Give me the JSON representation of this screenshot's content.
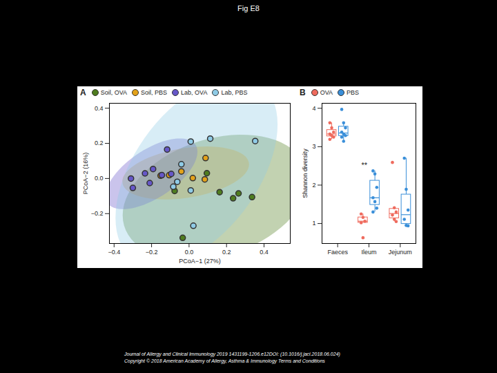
{
  "page": {
    "title": "Fig E8",
    "footer": [
      "Journal of Allergy and Clinical Immunology 2019 1431199-1206.e12DOI: (10.1016/j.jaci.2018.06.024)",
      "Copyright © 2018 American Academy of Allergy, Asthma & Immunology Terms and Conditions"
    ]
  },
  "chart_data": [
    {
      "type": "scatter",
      "panel": "A",
      "x_label": "PCoA−1 (27%)",
      "y_label": "PCoA−2 (16%)",
      "xlim": [
        -0.425,
        0.54
      ],
      "ylim": [
        -0.37,
        0.428
      ],
      "xticks": [
        {
          "value": -0.4,
          "label": "−0.4"
        },
        {
          "value": -0.2,
          "label": "−0.2"
        },
        {
          "value": 0,
          "label": "0.0"
        },
        {
          "value": 0.2,
          "label": "0.2"
        },
        {
          "value": 0.4,
          "label": "0.4"
        }
      ],
      "yticks": [
        {
          "value": -0.2,
          "label": "−0.2"
        },
        {
          "value": 0,
          "label": "0.0"
        },
        {
          "value": 0.2,
          "label": "0.2"
        },
        {
          "value": 0.4,
          "label": "0.4"
        }
      ],
      "grid": false,
      "legend": "top",
      "series": [
        {
          "name": "Soil, OVA",
          "color": "#4f7d1f",
          "x": [
            0.095,
            0.163,
            0.264,
            0.235,
            0.336,
            -0.034,
            -0.077
          ],
          "y": [
            0.03,
            -0.078,
            -0.085,
            -0.113,
            -0.106,
            -0.338,
            -0.071
          ]
        },
        {
          "name": "Soil, PBS",
          "color": "#e3a21a",
          "x": [
            0.088,
            0.02,
            0.084,
            -0.106,
            -0.041,
            -0.152
          ],
          "y": [
            0.116,
            0.002,
            -0.005,
            0.019,
            0.04,
            0.016
          ]
        },
        {
          "name": "Lab, OVA",
          "color": "#6657c8",
          "x": [
            -0.117,
            -0.192,
            -0.235,
            -0.21,
            -0.145,
            -0.095,
            -0.3,
            -0.31
          ],
          "y": [
            0.165,
            0.054,
            0.029,
            -0.026,
            0.019,
            0.026,
            -0.054,
            0.0
          ]
        },
        {
          "name": "Lab, PBS",
          "color": "#8fcbe6",
          "x": [
            0.009,
            0.113,
            0.353,
            -0.041,
            -0.063,
            0.009,
            0.023,
            -0.084
          ],
          "y": [
            0.21,
            0.227,
            0.213,
            0.081,
            -0.019,
            -0.068,
            -0.269,
            -0.047
          ]
        }
      ]
    },
    {
      "type": "box",
      "panel": "B",
      "y_label": "Shannon diversity",
      "categories": [
        "Faeces",
        "Ileum",
        "Jejunum"
      ],
      "ylim": [
        0.48,
        4.13
      ],
      "yticks": [
        1,
        2,
        3,
        4
      ],
      "grid": false,
      "legend": "top",
      "annotations": [
        {
          "category": "Ileum",
          "text": "**"
        }
      ],
      "series": [
        {
          "name": "OVA",
          "color": "#ef6b5e",
          "values": [
            [
              3.62,
              3.49,
              3.38,
              3.33,
              3.29,
              3.25,
              3.19
            ],
            [
              1.25,
              1.16,
              1.06,
              1.02,
              0.63
            ],
            [
              2.59,
              1.41,
              1.3,
              1.22,
              1.11,
              1.05
            ]
          ]
        },
        {
          "name": "PBS",
          "color": "#3a8fd9",
          "values": [
            [
              3.97,
              3.62,
              3.49,
              3.38,
              3.33,
              3.29,
              3.25,
              3.14
            ],
            [
              2.37,
              2.29,
              1.94,
              1.67,
              1.57,
              1.4,
              1.3
            ],
            [
              2.7,
              1.89,
              1.35,
              1.11,
              0.95,
              0.94
            ]
          ]
        }
      ]
    }
  ]
}
